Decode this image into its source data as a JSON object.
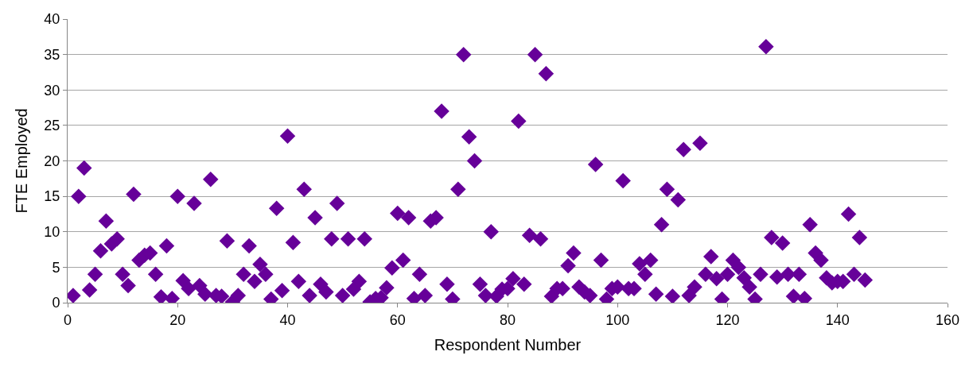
{
  "chart_data": {
    "type": "scatter",
    "xlabel": "Respondent Number",
    "ylabel": "FTE Employed",
    "x": [
      1,
      2,
      3,
      4,
      5,
      6,
      7,
      8,
      9,
      10,
      11,
      12,
      13,
      14,
      15,
      16,
      17,
      18,
      19,
      20,
      21,
      22,
      23,
      24,
      25,
      26,
      27,
      28,
      29,
      30,
      31,
      32,
      33,
      34,
      35,
      36,
      37,
      38,
      39,
      40,
      41,
      42,
      43,
      44,
      45,
      46,
      47,
      48,
      49,
      50,
      51,
      52,
      53,
      54,
      55,
      56,
      57,
      58,
      59,
      60,
      61,
      62,
      63,
      64,
      65,
      66,
      67,
      68,
      69,
      70,
      71,
      72,
      73,
      74,
      75,
      76,
      77,
      78,
      79,
      80,
      81,
      82,
      83,
      84,
      85,
      86,
      87,
      88,
      89,
      90,
      91,
      92,
      93,
      94,
      95,
      96,
      97,
      98,
      99,
      100,
      101,
      102,
      103,
      104,
      105,
      106,
      107,
      108,
      109,
      110,
      111,
      112,
      113,
      114,
      115,
      116,
      117,
      118,
      119,
      120,
      121,
      122,
      123,
      124,
      125,
      126,
      127,
      128,
      129,
      130,
      131,
      132,
      133,
      134,
      135,
      136,
      137,
      138,
      139,
      140,
      141,
      142,
      143,
      144,
      145
    ],
    "series": [
      {
        "color": "#660099",
        "values": [
          1,
          15,
          19,
          1.8,
          4,
          7.3,
          11.5,
          8.3,
          9,
          4,
          2.4,
          15.3,
          6,
          6.7,
          7,
          4,
          0.8,
          8,
          0.6,
          15,
          3.1,
          2,
          14,
          2.4,
          1.2,
          17.4,
          1,
          0.9,
          8.7,
          0.1,
          1,
          4,
          8,
          3,
          5.4,
          4,
          0.5,
          13.3,
          1.7,
          23.5,
          8.5,
          3,
          16,
          1,
          12,
          2.6,
          1.5,
          9,
          14,
          1,
          9,
          1.9,
          3,
          9,
          0.1,
          0.6,
          0.7,
          2.1,
          4.9,
          12.6,
          6,
          12,
          0.6,
          4,
          1,
          11.5,
          12,
          27,
          2.6,
          0.5,
          16,
          35,
          23.4,
          20,
          2.6,
          1,
          10,
          0.9,
          1.9,
          2,
          3.4,
          25.6,
          2.6,
          9.5,
          35,
          9,
          32.3,
          0.9,
          2,
          2,
          5.2,
          7,
          2.2,
          1.5,
          1,
          19.5,
          6,
          0.5,
          2,
          2.2,
          17.2,
          2,
          2,
          5.5,
          4,
          6,
          1.2,
          11,
          16,
          0.9,
          14.5,
          21.6,
          1,
          2.2,
          22.5,
          4,
          6.5,
          3.4,
          0.5,
          4,
          6,
          5,
          3.5,
          2.2,
          0.5,
          4,
          36.1,
          9.2,
          3.6,
          8.4,
          4,
          0.9,
          4,
          0.6,
          11,
          7,
          6,
          3.5,
          2.8,
          3,
          3,
          12.5,
          4,
          9.2,
          3.2
        ]
      }
    ],
    "xlim": [
      0,
      160
    ],
    "xticks": [
      0,
      20,
      40,
      60,
      80,
      100,
      120,
      140,
      160
    ],
    "ylim": [
      0,
      40
    ],
    "yticks": [
      0,
      5,
      10,
      15,
      20,
      25,
      30,
      35,
      40
    ],
    "grid": "y",
    "marker": "diamond",
    "legend": false
  }
}
